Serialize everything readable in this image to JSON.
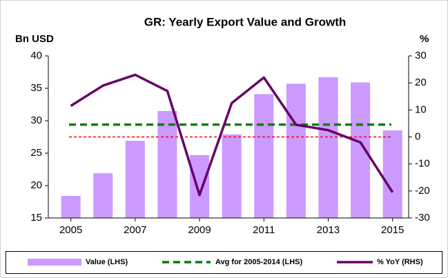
{
  "chart_data": {
    "type": "bar_line_combo",
    "title": "GR: Yearly Export Value and Growth",
    "y_axis_label": "Bn USD",
    "y2_axis_label": "%",
    "x": [
      2005,
      2006,
      2007,
      2008,
      2009,
      2010,
      2011,
      2012,
      2013,
      2014,
      2015
    ],
    "xlim": [
      2004.3,
      2015.5
    ],
    "xticks": [
      2005,
      2007,
      2009,
      2011,
      2013,
      2015
    ],
    "ylim": [
      15,
      40
    ],
    "yticks": [
      15,
      20,
      25,
      30,
      35,
      40
    ],
    "y2lim": [
      -30,
      30
    ],
    "y2ticks": [
      -30,
      -20,
      -10,
      0,
      10,
      20,
      30
    ],
    "series": [
      {
        "name": "Value (LHS)",
        "type": "bar",
        "color": "#cc99ff",
        "values": [
          18.4,
          21.9,
          26.9,
          31.5,
          24.7,
          27.9,
          34.1,
          35.7,
          36.7,
          35.9,
          28.5
        ]
      },
      {
        "name": "Avg for 2005-2014 (LHS)",
        "type": "hline",
        "color": "#008000",
        "value": 29.4
      },
      {
        "name": "% YoY (RHS)",
        "type": "line",
        "axis": "y2",
        "color": "#660066",
        "values": [
          11.5,
          19,
          23,
          17,
          -21.5,
          12.5,
          22,
          4.5,
          2.5,
          -2,
          -20.5
        ]
      }
    ],
    "y2_reference_line": {
      "value": 0,
      "color": "#ff0000"
    },
    "legend": "bottom"
  }
}
